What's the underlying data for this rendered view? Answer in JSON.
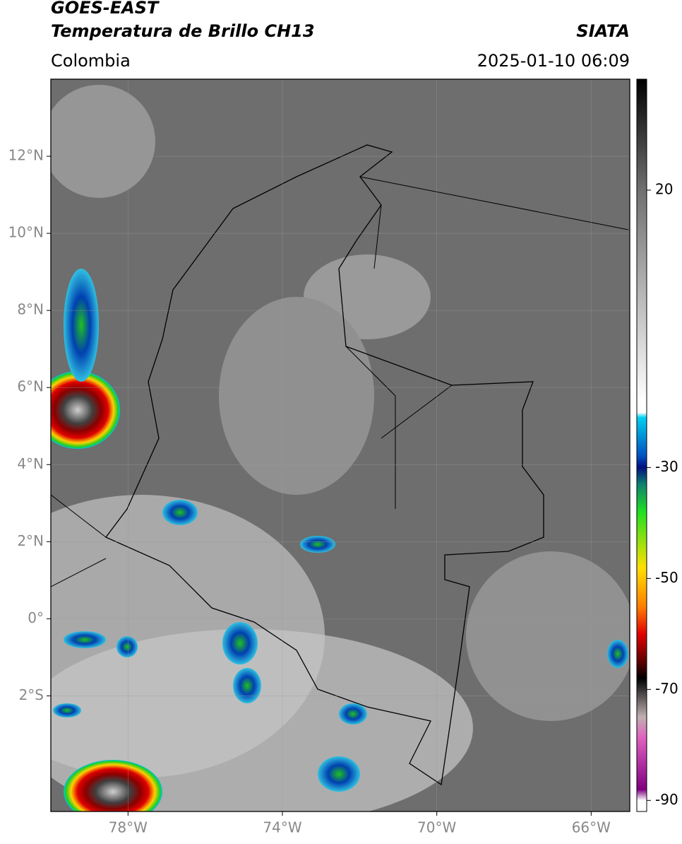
{
  "header": {
    "title": "GOES-EAST",
    "subtitle": "Temperatura de Brillo CH13",
    "region": "Colombia",
    "source": "SIATA",
    "timestamp": "2025-01-10 06:09"
  },
  "map": {
    "lonlim": [
      -80,
      -65
    ],
    "latlim": [
      -5,
      14
    ],
    "lon_ticks": [
      {
        "value": -78,
        "label": "78°W"
      },
      {
        "value": -74,
        "label": "74°W"
      },
      {
        "value": -70,
        "label": "70°W"
      },
      {
        "value": -66,
        "label": "66°W"
      }
    ],
    "lat_ticks": [
      {
        "value": 12,
        "label": "12°N"
      },
      {
        "value": 10,
        "label": "10°N"
      },
      {
        "value": 8,
        "label": "8°N"
      },
      {
        "value": 6,
        "label": "6°N"
      },
      {
        "value": 4,
        "label": "4°N"
      },
      {
        "value": 2,
        "label": "2°N"
      },
      {
        "value": 0,
        "label": "0°"
      },
      {
        "value": -2,
        "label": "2°S"
      }
    ],
    "grid": true
  },
  "colorbar": {
    "lim": [
      -92,
      40
    ],
    "ticks": [
      20,
      -30,
      -50,
      -70,
      -90
    ]
  }
}
